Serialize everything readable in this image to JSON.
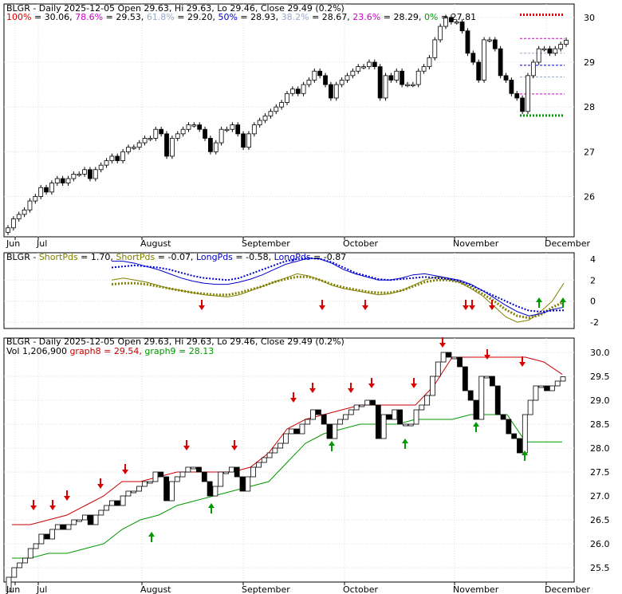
{
  "panel1": {
    "title": "BLGR - Daily 2025-12-05 Open 29.63, Hi 29.63, Lo 29.46, Close 29.49 (0.2%)",
    "fib_levels": [
      {
        "label": "100%",
        "value": "30.06",
        "color": "#dd0000"
      },
      {
        "label": "78.6%",
        "value": "29.53",
        "color": "#cc00cc"
      },
      {
        "label": "61.8%",
        "value": "29.20",
        "color": "#99aacc"
      },
      {
        "label": "50%",
        "value": "28.93",
        "color": "#0000cc"
      },
      {
        "label": "38.2%",
        "value": "28.67",
        "color": "#99aacc"
      },
      {
        "label": "23.6%",
        "value": "28.29",
        "color": "#cc00cc"
      },
      {
        "label": "0%",
        "value": "27.81",
        "color": "#009900"
      }
    ],
    "y_ticks": [
      "30",
      "29",
      "28",
      "27",
      "26"
    ],
    "x_labels": [
      "Jun",
      "Jul",
      "August",
      "September",
      "October",
      "November",
      "December"
    ]
  },
  "panel2": {
    "ticker": "BLGR",
    "legend": [
      {
        "label": "ShortPds",
        "value": "1.70",
        "color": "#808000"
      },
      {
        "label": "ShortPds",
        "value": "-0.07",
        "color": "#808000"
      },
      {
        "label": "LongPds",
        "value": "-0.58",
        "color": "#0000cc"
      },
      {
        "label": "LongPds",
        "value": "-0.87",
        "color": "#0000cc"
      }
    ],
    "y_ticks": [
      "4",
      "2",
      "0",
      "-2"
    ]
  },
  "panel3": {
    "title": "BLGR - Daily 2025-12-05 Open 29.63, Hi 29.63, Lo 29.46, Close 29.49 (0.2%)",
    "vol_label": "Vol 1,206,900",
    "graph8_label": "graph8 = 29.54",
    "graph9_label": "graph9 = 28.13",
    "y_ticks": [
      "30.0",
      "29.5",
      "29.0",
      "28.5",
      "28.0",
      "27.5",
      "27.0",
      "26.5",
      "26.0",
      "25.5"
    ],
    "x_labels": [
      "Jun",
      "Jul",
      "August",
      "September",
      "October",
      "November",
      "December"
    ]
  },
  "chart_data": [
    {
      "type": "candlestick",
      "title": "BLGR - Daily 2025-12-05 Open 29.63, Hi 29.63, Lo 29.46, Close 29.49 (0.2%)",
      "ylim": [
        25.1,
        30.3
      ],
      "close_series": [
        25.3,
        25.5,
        25.6,
        25.7,
        25.9,
        26.0,
        26.2,
        26.1,
        26.3,
        26.4,
        26.3,
        26.4,
        26.5,
        26.5,
        26.6,
        26.4,
        26.6,
        26.7,
        26.8,
        26.9,
        26.8,
        27.0,
        27.1,
        27.1,
        27.2,
        27.3,
        27.3,
        27.5,
        27.4,
        26.9,
        27.3,
        27.4,
        27.5,
        27.6,
        27.6,
        27.5,
        27.3,
        27.0,
        27.2,
        27.5,
        27.5,
        27.6,
        27.4,
        27.1,
        27.4,
        27.6,
        27.7,
        27.8,
        27.9,
        28.0,
        28.1,
        28.3,
        28.4,
        28.3,
        28.5,
        28.6,
        28.8,
        28.7,
        28.5,
        28.2,
        28.5,
        28.6,
        28.7,
        28.8,
        28.9,
        28.9,
        29.0,
        28.9,
        28.2,
        28.7,
        28.6,
        28.8,
        28.5,
        28.5,
        28.5,
        28.8,
        28.9,
        29.1,
        29.5,
        29.8,
        30.0,
        29.9,
        29.9,
        29.7,
        29.2,
        29.0,
        28.6,
        29.5,
        29.5,
        29.3,
        28.7,
        28.6,
        28.3,
        28.2,
        27.9,
        28.7,
        29.0,
        29.3,
        29.3,
        29.2,
        29.3,
        29.4,
        29.49
      ],
      "fib_lines": {
        "100%": 30.06,
        "78.6%": 29.53,
        "61.8%": 29.2,
        "50%": 28.93,
        "38.2%": 28.67,
        "23.6%": 28.29,
        "0%": 27.81
      }
    },
    {
      "type": "line",
      "ylim": [
        -2.6,
        4.6
      ],
      "series": [
        {
          "name": "ShortPds",
          "values": [
            2.0,
            2.2,
            2.0,
            1.8,
            1.5,
            1.2,
            1.0,
            0.8,
            0.6,
            0.5,
            0.4,
            0.6,
            1.0,
            1.4,
            1.8,
            2.2,
            2.6,
            2.4,
            2.0,
            1.5,
            1.2,
            1.0,
            0.8,
            0.6,
            0.7,
            1.0,
            1.5,
            2.0,
            2.3,
            2.2,
            1.8,
            1.2,
            0.5,
            -0.5,
            -1.5,
            -2.0,
            -1.8,
            -1.0,
            0.0,
            1.7
          ]
        },
        {
          "name": "ShortPds",
          "values": [
            1.6,
            1.7,
            1.7,
            1.6,
            1.4,
            1.2,
            1.0,
            0.8,
            0.7,
            0.6,
            0.6,
            0.8,
            1.1,
            1.4,
            1.8,
            2.1,
            2.3,
            2.3,
            2.0,
            1.6,
            1.3,
            1.1,
            0.9,
            0.8,
            0.8,
            1.0,
            1.4,
            1.8,
            2.0,
            2.0,
            1.8,
            1.3,
            0.7,
            0.0,
            -0.8,
            -1.4,
            -1.6,
            -1.3,
            -0.6,
            -0.07
          ]
        },
        {
          "name": "LongPds",
          "values": [
            3.8,
            3.8,
            3.6,
            3.3,
            3.0,
            2.6,
            2.2,
            1.9,
            1.7,
            1.6,
            1.6,
            1.8,
            2.1,
            2.5,
            3.0,
            3.5,
            3.8,
            4.1,
            4.0,
            3.6,
            3.0,
            2.6,
            2.3,
            2.0,
            2.0,
            2.2,
            2.5,
            2.6,
            2.4,
            2.2,
            2.0,
            1.6,
            1.0,
            0.3,
            -0.4,
            -1.0,
            -1.4,
            -1.2,
            -0.8,
            -0.58
          ]
        },
        {
          "name": "LongPds",
          "values": [
            3.2,
            3.3,
            3.4,
            3.3,
            3.2,
            3.0,
            2.7,
            2.4,
            2.2,
            2.1,
            2.0,
            2.2,
            2.6,
            3.0,
            3.4,
            3.8,
            4.0,
            4.1,
            4.0,
            3.7,
            3.2,
            2.7,
            2.4,
            2.1,
            2.0,
            2.1,
            2.2,
            2.3,
            2.2,
            2.1,
            1.9,
            1.5,
            1.0,
            0.5,
            0.0,
            -0.5,
            -0.9,
            -1.0,
            -0.9,
            -0.87
          ]
        }
      ]
    },
    {
      "type": "line",
      "title": "BLGR - Daily 2025-12-05 Open 29.63, Hi 29.63, Lo 29.46, Close 29.49 (0.2%)",
      "ylim": [
        25.2,
        30.3
      ],
      "series": [
        {
          "name": "graph8",
          "values": [
            26.4,
            26.4,
            26.5,
            26.6,
            26.8,
            27.0,
            27.3,
            27.3,
            27.4,
            27.5,
            27.5,
            27.5,
            27.5,
            27.6,
            27.9,
            28.4,
            28.6,
            28.7,
            28.8,
            28.9,
            28.9,
            28.9,
            28.9,
            29.3,
            29.9,
            29.9,
            29.9,
            29.9,
            29.9,
            29.8,
            29.54
          ]
        },
        {
          "name": "graph9",
          "values": [
            25.7,
            25.7,
            25.8,
            25.8,
            25.9,
            26.0,
            26.3,
            26.5,
            26.6,
            26.8,
            26.9,
            27.0,
            27.1,
            27.2,
            27.3,
            27.7,
            28.1,
            28.3,
            28.4,
            28.5,
            28.5,
            28.5,
            28.6,
            28.6,
            28.6,
            28.7,
            28.7,
            28.7,
            28.13,
            28.13,
            28.13
          ]
        }
      ]
    }
  ]
}
